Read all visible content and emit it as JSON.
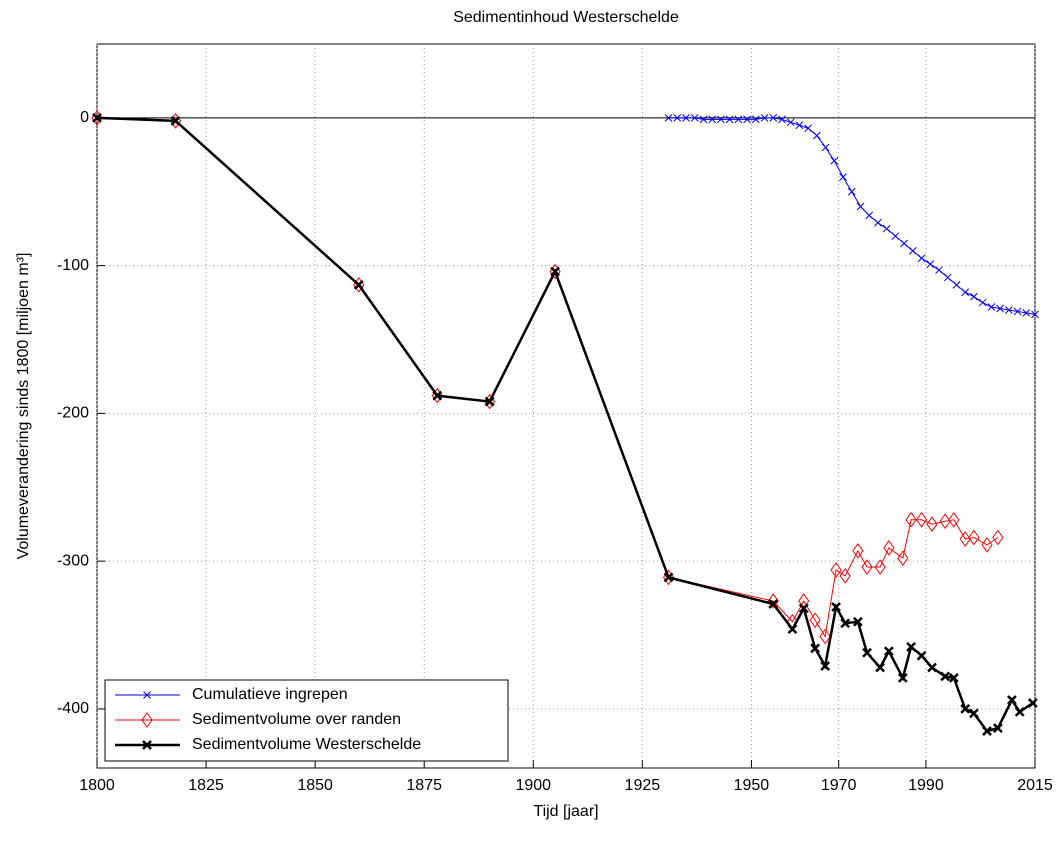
{
  "chart_data": {
    "type": "line",
    "title": "Sedimentinhoud Westerschelde",
    "x_label": "Tijd [jaar]",
    "y_label": "Volumeverandering sinds 1800 [miljoen m³]",
    "xlim": [
      1800,
      2015
    ],
    "ylim": [
      -440,
      50
    ],
    "xticks": [
      1800,
      1825,
      1850,
      1875,
      1900,
      1925,
      1950,
      1970,
      1990,
      2015
    ],
    "yticks": [
      -400,
      -300,
      -200,
      -100,
      0
    ],
    "grid": true,
    "legend": "lower left",
    "series": [
      {
        "name": "Cumulatieve ingrepen",
        "color": "#0000ff",
        "marker": "x",
        "x": [
          1931,
          1933,
          1935,
          1937,
          1939,
          1941,
          1943,
          1945,
          1947,
          1949,
          1951,
          1953,
          1955,
          1957,
          1959,
          1961,
          1963,
          1965,
          1967,
          1969,
          1971,
          1973,
          1975,
          1977,
          1979,
          1981,
          1983,
          1985,
          1987,
          1989,
          1991,
          1993,
          1995,
          1997,
          1999,
          2001,
          2003,
          2005,
          2007,
          2009,
          2011,
          2013,
          2015
        ],
        "values": [
          0,
          0,
          0,
          0,
          -1,
          -1,
          -1,
          -1,
          -1,
          -1,
          -1,
          0,
          0,
          -1,
          -3,
          -5,
          -7,
          -12,
          -20,
          -29,
          -40,
          -50,
          -60,
          -66,
          -71,
          -75,
          -80,
          -85,
          -90,
          -95,
          -99,
          -103,
          -108,
          -113,
          -118,
          -121,
          -125,
          -128,
          -129,
          -130,
          -131,
          -132,
          -133
        ]
      },
      {
        "name": "Sedimentvolume over randen",
        "color": "#ff0000",
        "marker": "diamond",
        "x": [
          1800,
          1818,
          1860,
          1878,
          1890,
          1905,
          1931,
          1955,
          1959.4,
          1962,
          1964.6,
          1966.9,
          1969.4,
          1971.5,
          1974.4,
          1976.5,
          1979.5,
          1981.5,
          1984.7,
          1986.6,
          1989,
          1991.4,
          1994.4,
          1996.4,
          1999,
          2001,
          2004,
          2006.5
        ],
        "values": [
          0,
          -2,
          -113,
          -188,
          -192,
          -104,
          -311,
          -327,
          -341,
          -327,
          -340,
          -351,
          -306,
          -310,
          -293,
          -304,
          -304,
          -291,
          -298,
          -272,
          -272,
          -275,
          -273,
          -272,
          -285,
          -284,
          -289,
          -284
        ]
      },
      {
        "name": "Sedimentvolume Westerschelde",
        "color": "#000000",
        "marker": "x-bold",
        "x": [
          1800,
          1818,
          1860,
          1878,
          1890,
          1905,
          1931,
          1955,
          1959.4,
          1962,
          1964.6,
          1966.9,
          1969.4,
          1971.5,
          1974.4,
          1976.5,
          1979.5,
          1981.5,
          1984.7,
          1986.6,
          1989,
          1991.4,
          1994.4,
          1996.4,
          1999,
          2001,
          2004,
          2006.5,
          2009.7,
          2011.5,
          2014.5
        ],
        "values": [
          0,
          -2,
          -113,
          -188,
          -192,
          -104,
          -311,
          -329,
          -346,
          -332,
          -359,
          -371,
          -331,
          -342,
          -341,
          -362,
          -372,
          -361,
          -379,
          -358,
          -364,
          -372,
          -378,
          -379,
          -400,
          -403,
          -415,
          -413,
          -394,
          -402,
          -396
        ]
      }
    ]
  }
}
